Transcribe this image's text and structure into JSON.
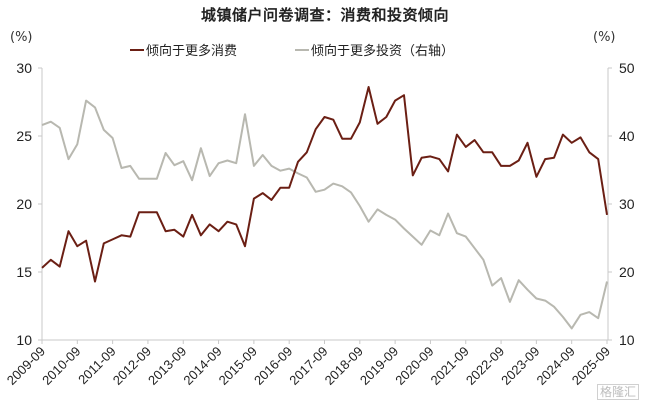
{
  "chart_data": {
    "type": "line",
    "title": "城镇储户问卷调查：消费和投资倾向",
    "left_axis": {
      "label": "(%)",
      "range": [
        10,
        30
      ],
      "ticks": [
        10,
        15,
        20,
        25,
        30
      ]
    },
    "right_axis": {
      "label": "(%)",
      "range": [
        10,
        50
      ],
      "ticks": [
        10,
        20,
        30,
        40,
        50
      ]
    },
    "x_tick_labels": [
      "2009-09",
      "2010-09",
      "2011-09",
      "2012-09",
      "2013-09",
      "2014-09",
      "2015-09",
      "2016-09",
      "2017-09",
      "2018-09",
      "2019-09",
      "2020-09",
      "2021-09",
      "2022-09",
      "2023-09",
      "2024-09",
      "2025-09"
    ],
    "frequency": "quarterly",
    "x_start": "2009-09",
    "x_end": "2025-09",
    "grid": false,
    "legend_position": "top",
    "series": [
      {
        "name": "倾向于更多消费",
        "axis": "left",
        "color": "#6b1f14",
        "values": [
          15.3,
          15.9,
          15.4,
          18.0,
          16.9,
          17.3,
          14.3,
          17.1,
          17.4,
          17.7,
          17.6,
          19.4,
          19.4,
          19.4,
          18.0,
          18.1,
          17.6,
          19.2,
          17.7,
          18.5,
          18.0,
          18.7,
          18.5,
          16.9,
          20.4,
          20.8,
          20.3,
          21.2,
          21.2,
          23.1,
          23.8,
          25.5,
          26.4,
          26.2,
          24.8,
          24.8,
          26.0,
          28.6,
          25.9,
          26.4,
          27.6,
          28.0,
          22.1,
          23.4,
          23.5,
          23.3,
          22.4,
          25.1,
          24.2,
          24.7,
          23.8,
          23.8,
          22.8,
          22.8,
          23.2,
          24.5,
          22.0,
          23.3,
          23.4,
          25.1,
          24.5,
          24.9,
          23.8,
          23.3,
          19.2
        ]
      },
      {
        "name": "倾向于更多投资（右轴）",
        "axis": "right",
        "color": "#b8b8b0",
        "values": [
          41.6,
          42.1,
          41.2,
          36.6,
          38.8,
          45.2,
          44.2,
          40.9,
          39.7,
          35.3,
          35.6,
          33.7,
          33.7,
          33.7,
          37.5,
          35.7,
          36.3,
          33.5,
          38.2,
          34.1,
          36.0,
          36.4,
          36.0,
          43.2,
          35.6,
          37.2,
          35.6,
          34.9,
          35.2,
          34.5,
          33.9,
          31.8,
          32.1,
          33.0,
          32.6,
          31.7,
          29.7,
          27.4,
          29.2,
          28.4,
          27.7,
          26.4,
          25.2,
          24.0,
          26.1,
          25.4,
          28.6,
          25.7,
          25.2,
          23.5,
          21.8,
          18.0,
          19.1,
          15.6,
          18.8,
          17.4,
          16.1,
          15.8,
          14.9,
          13.4,
          11.7,
          13.7,
          14.1,
          13.2,
          18.6
        ]
      }
    ]
  },
  "watermark": "格隆汇"
}
